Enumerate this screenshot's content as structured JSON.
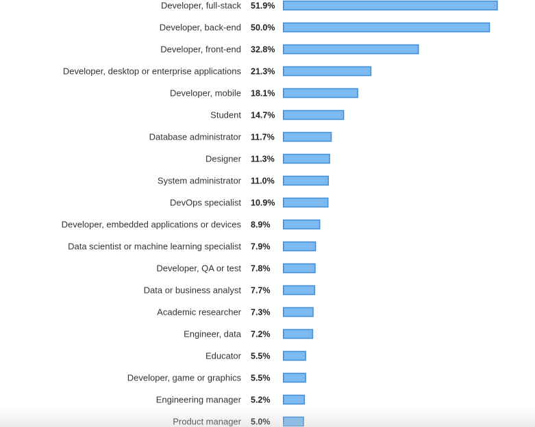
{
  "chart_data": {
    "type": "bar",
    "orientation": "horizontal",
    "categories": [
      "Developer, full-stack",
      "Developer, back-end",
      "Developer, front-end",
      "Developer, desktop or enterprise applications",
      "Developer, mobile",
      "Student",
      "Database administrator",
      "Designer",
      "System administrator",
      "DevOps specialist",
      "Developer, embedded applications or devices",
      "Data scientist or machine learning specialist",
      "Developer, QA or test",
      "Data or business analyst",
      "Academic researcher",
      "Engineer, data",
      "Educator",
      "Developer, game or graphics",
      "Engineering manager",
      "Product manager"
    ],
    "values": [
      51.9,
      50.0,
      32.8,
      21.3,
      18.1,
      14.7,
      11.7,
      11.3,
      11.0,
      10.9,
      8.9,
      7.9,
      7.8,
      7.7,
      7.3,
      7.2,
      5.5,
      5.5,
      5.2,
      5.0
    ],
    "value_labels": [
      "51.9%",
      "50.0%",
      "32.8%",
      "21.3%",
      "18.1%",
      "14.7%",
      "11.7%",
      "11.3%",
      "11.0%",
      "10.9%",
      "8.9%",
      "7.9%",
      "7.8%",
      "7.7%",
      "7.3%",
      "7.2%",
      "5.5%",
      "5.5%",
      "5.2%",
      "5.0%"
    ],
    "xlim": [
      0,
      51.9
    ],
    "unit": "%",
    "grid": false,
    "legend": "none",
    "colors": {
      "bar_fill": "#7db8ee",
      "bar_stroke": "#3f8fdc"
    }
  }
}
